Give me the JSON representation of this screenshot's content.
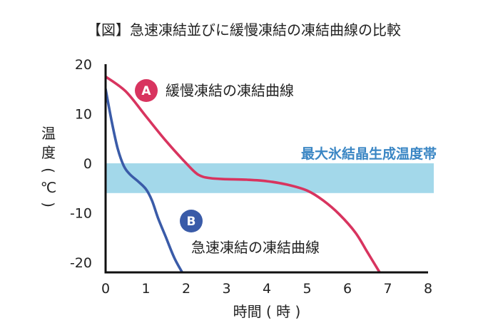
{
  "chart_data": {
    "type": "line",
    "title": "【図】急速凍結並びに緩慢凍結の凍結曲線の比較",
    "xlabel": "時間 ( 時 )",
    "ylabel": [
      "温",
      "度",
      "(",
      "℃",
      ")"
    ],
    "xlim": [
      0,
      8
    ],
    "ylim": [
      -22,
      20
    ],
    "xticks": [
      0,
      1,
      2,
      3,
      4,
      5,
      6,
      7,
      8
    ],
    "xtick_labels": [
      "0",
      "1",
      "2",
      "3",
      "4",
      "5",
      "6",
      "7",
      "8"
    ],
    "yticks": [
      20,
      10,
      0,
      -10,
      -20
    ],
    "ytick_labels": [
      "20",
      "10",
      "0",
      "-10",
      "-20"
    ],
    "grid": false,
    "band": {
      "label": "最大氷結晶生成温度帯",
      "y_from": -6,
      "y_to": 0,
      "color": "#a3d8ea",
      "label_color": "#3a86c4"
    },
    "series": [
      {
        "name": "緩慢凍結の凍結曲線",
        "badge": "A",
        "color": "#d8345f",
        "x": [
          0,
          0.5,
          1.0,
          1.5,
          2.0,
          2.3,
          2.6,
          3.0,
          3.5,
          4.0,
          4.5,
          5.0,
          5.4,
          5.8,
          6.2,
          6.5,
          6.8
        ],
        "y": [
          17.5,
          14.5,
          9.5,
          4.5,
          0,
          -2.3,
          -3.0,
          -3.2,
          -3.3,
          -3.6,
          -4.3,
          -5.5,
          -7.5,
          -10.3,
          -14,
          -18,
          -22
        ]
      },
      {
        "name": "急速凍結の凍結曲線",
        "badge": "B",
        "color": "#3a5ba8",
        "x": [
          0,
          0.15,
          0.3,
          0.45,
          0.6,
          0.8,
          1.0,
          1.15,
          1.3,
          1.5,
          1.7,
          1.9
        ],
        "y": [
          15,
          8.5,
          3.0,
          -0.5,
          -2.2,
          -3.6,
          -5.2,
          -7.5,
          -11,
          -15,
          -19,
          -22
        ]
      }
    ]
  }
}
